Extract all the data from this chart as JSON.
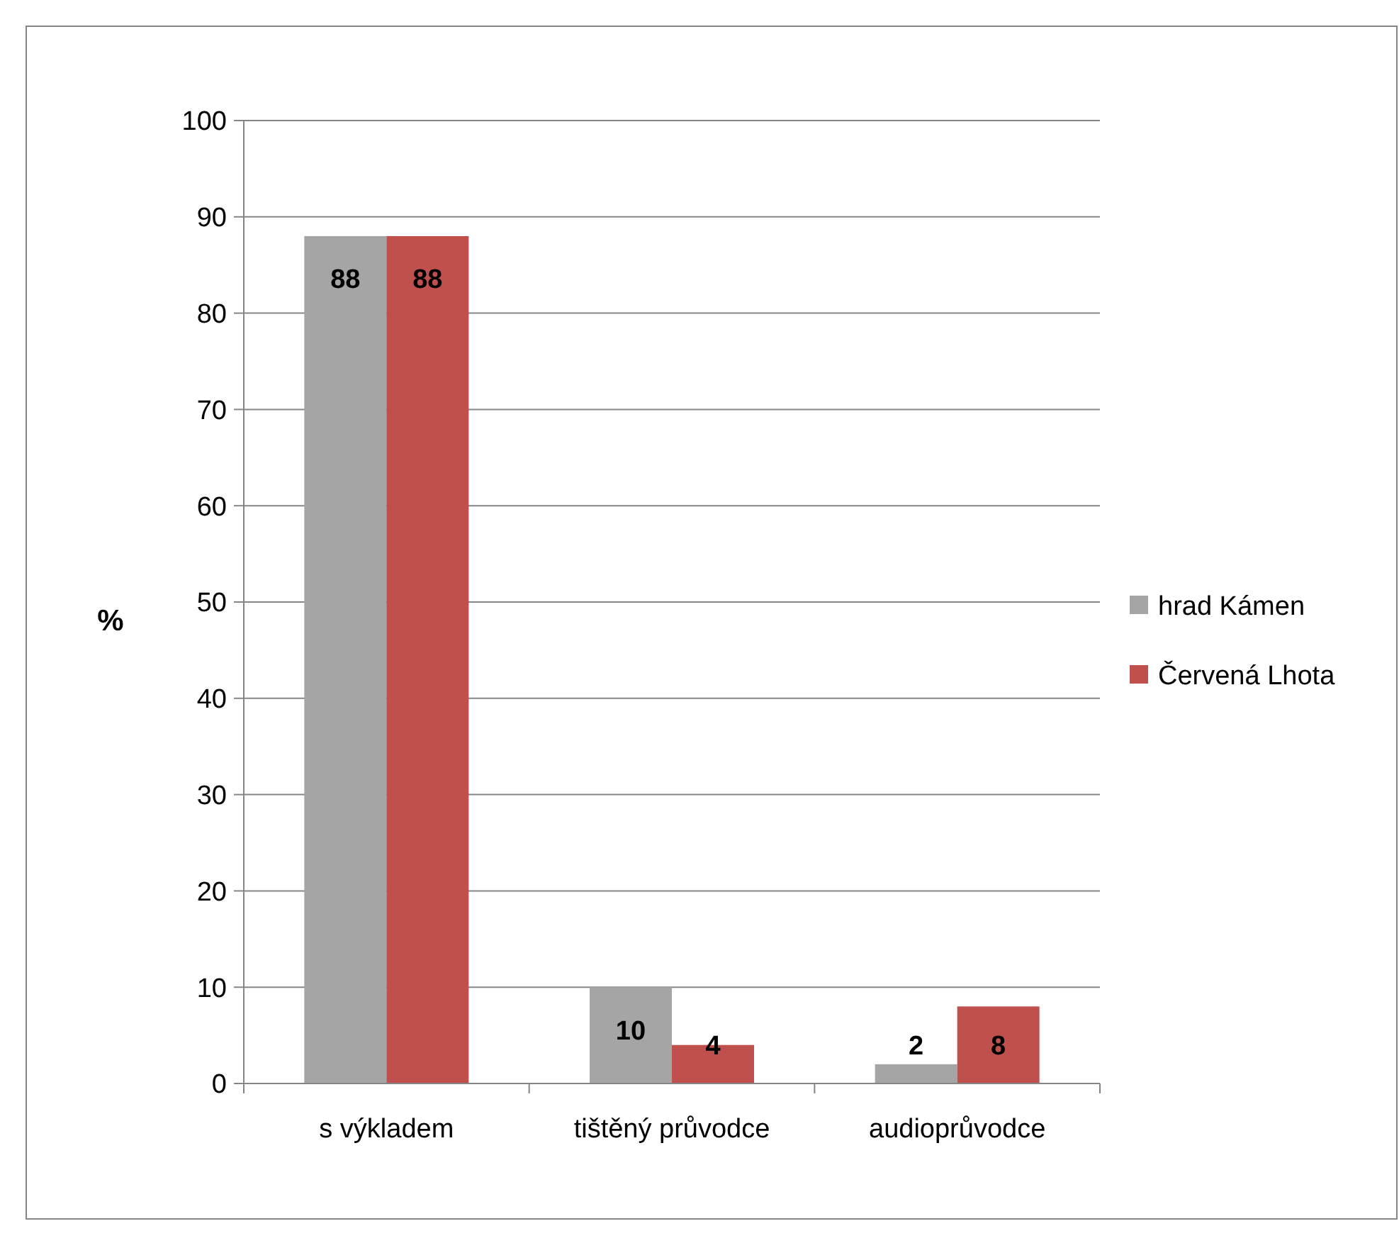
{
  "chart_data": {
    "type": "bar",
    "ylabel": "%",
    "categories": [
      "s výkladem",
      "tištěný průvodce",
      "audioprůvodce"
    ],
    "series": [
      {
        "name": "hrad Kámen",
        "color": "#a5a5a5",
        "values": [
          88,
          10,
          2
        ]
      },
      {
        "name": "Červená Lhota",
        "color": "#c0504d",
        "values": [
          88,
          4,
          8
        ]
      }
    ],
    "ylim": [
      0,
      100
    ],
    "yticks": [
      0,
      10,
      20,
      30,
      40,
      50,
      60,
      70,
      80,
      90,
      100
    ],
    "grid": "y",
    "legend": "right",
    "data_labels": true
  }
}
